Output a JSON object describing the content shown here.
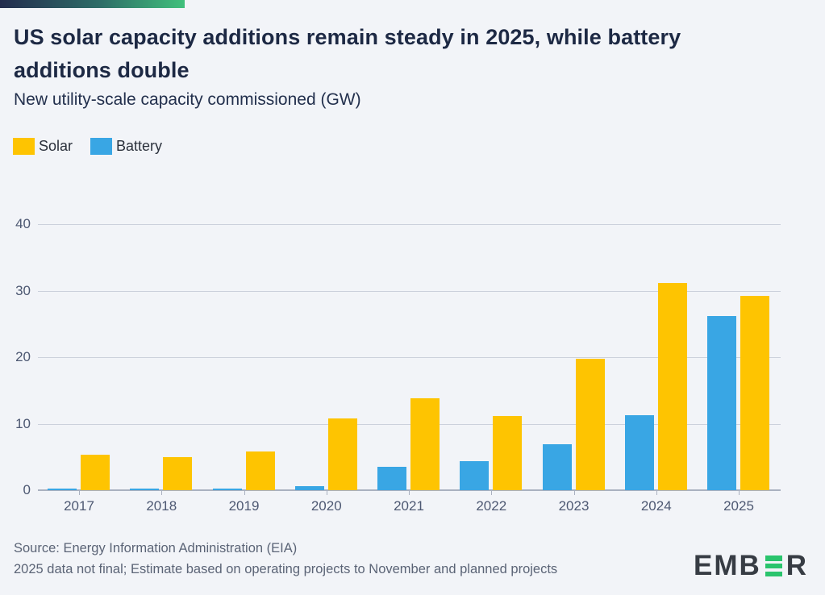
{
  "header": {
    "title_line1": "US solar capacity additions remain steady in 2025, while battery",
    "title_line2": "additions double",
    "subtitle": "New utility-scale capacity commissioned (GW)"
  },
  "legend": [
    {
      "label": "Solar",
      "color": "#fec401"
    },
    {
      "label": "Battery",
      "color": "#39a6e4"
    }
  ],
  "chart_data": {
    "type": "bar",
    "title": "US solar capacity additions remain steady in 2025, while battery additions double",
    "subtitle": "New utility-scale capacity commissioned (GW)",
    "categories": [
      "2017",
      "2018",
      "2019",
      "2020",
      "2021",
      "2022",
      "2023",
      "2024",
      "2025"
    ],
    "series": [
      {
        "name": "Solar",
        "color": "#fec401",
        "values": [
          5.3,
          5.0,
          5.8,
          10.8,
          13.8,
          11.2,
          19.7,
          31.2,
          29.2
        ]
      },
      {
        "name": "Battery",
        "color": "#39a6e4",
        "values": [
          0.2,
          0.3,
          0.3,
          0.6,
          3.5,
          4.4,
          6.9,
          11.3,
          26.2
        ]
      }
    ],
    "bar_order_in_group": [
      "Battery",
      "Solar"
    ],
    "xlabel": "",
    "ylabel": "GW",
    "yticks": [
      0,
      10,
      20,
      30,
      40
    ],
    "ylim": [
      0,
      40
    ],
    "grid": true,
    "legend_position": "top-left"
  },
  "footer": {
    "source_line1": "Source: Energy Information Administration (EIA)",
    "source_line2": "2025 data not final; Estimate based on operating projects to November and planned projects",
    "logo_text": "EMBER"
  },
  "colors": {
    "background": "#f2f4f8",
    "title_text": "#1d2944",
    "axis_text": "#4d5872",
    "gridline": "#ccd1dc",
    "baseline": "#aab1c0",
    "footer_text": "#5b6476",
    "logo_dark": "#373c44",
    "logo_green": "#2ac46d",
    "brand_bar_start": "#232c4e",
    "brand_bar_end": "#41c07c"
  }
}
